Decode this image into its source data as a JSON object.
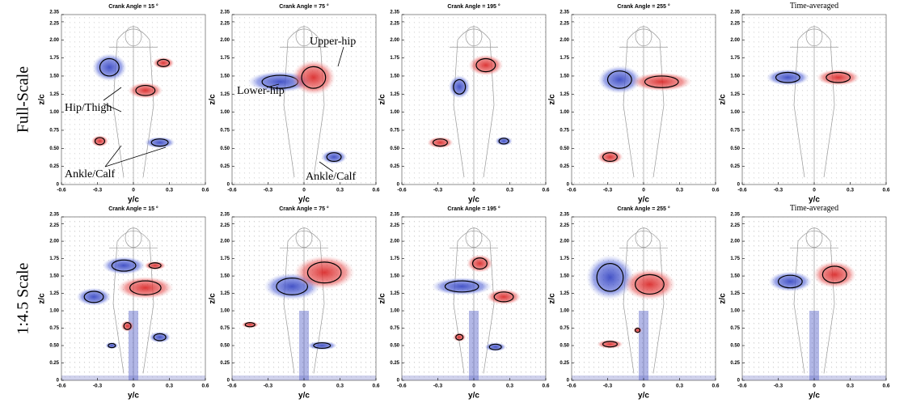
{
  "rows": [
    {
      "label": "Full-Scale",
      "panels": [
        {
          "title": "Crank Angle = 15 °"
        },
        {
          "title": "Crank Angle = 75 °"
        },
        {
          "title": "Crank Angle = 195 °"
        },
        {
          "title": "Crank Angle = 255 °"
        },
        {
          "title": "Time-averaged"
        }
      ]
    },
    {
      "label": "1:4.5 Scale",
      "panels": [
        {
          "title": "Crank Angle = 15 °"
        },
        {
          "title": "Crank Angle = 75 °"
        },
        {
          "title": "Crank Angle = 195 °"
        },
        {
          "title": "Crank Angle = 255 °"
        },
        {
          "title": "Time-averaged"
        }
      ]
    }
  ],
  "axes": {
    "xlabel": "y/c",
    "ylabel": "z/c",
    "xticks": [
      "-0.6",
      "-0.3",
      "0",
      "0.3",
      "0.6"
    ],
    "yticks": [
      "0",
      "0.25",
      "0.50",
      "0.75",
      "1.00",
      "1.25",
      "1.50",
      "1.75",
      "2.00",
      "2.25",
      "2.35"
    ]
  },
  "annotations": [
    {
      "text": "Hip/Thigh"
    },
    {
      "text": "Ankle/Calf"
    },
    {
      "text": "Upper-hip"
    },
    {
      "text": "Lower-hip"
    },
    {
      "text": "Ankle/Calf"
    }
  ]
}
